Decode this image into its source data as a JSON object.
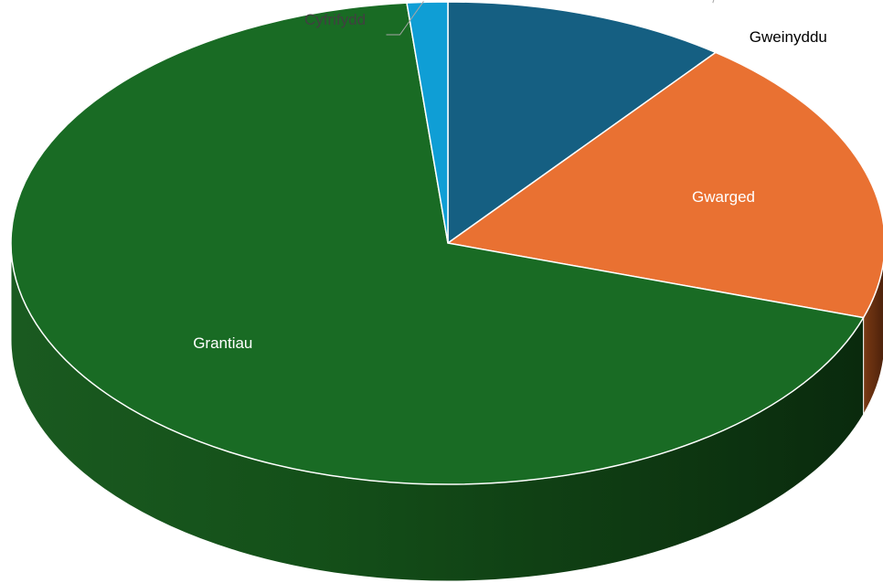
{
  "chart_data": {
    "type": "pie",
    "style": "3d",
    "legend": "none",
    "slices": [
      {
        "label": "Gweinyddu",
        "value": 10.5,
        "color": "#155f82",
        "label_color": "#000000",
        "label_placement": "outside"
      },
      {
        "label": "Gwarged",
        "value": 19.5,
        "color": "#e97132",
        "label_color": "#ffffff",
        "label_placement": "inside"
      },
      {
        "label": "Grantiau",
        "value": 68.5,
        "color": "#196b24",
        "label_color": "#ffffff",
        "label_placement": "inside"
      },
      {
        "label": "Cyfrifydd",
        "value": 1.5,
        "color": "#0f9ed5",
        "label_color": "#404040",
        "label_placement": "outside"
      }
    ]
  }
}
